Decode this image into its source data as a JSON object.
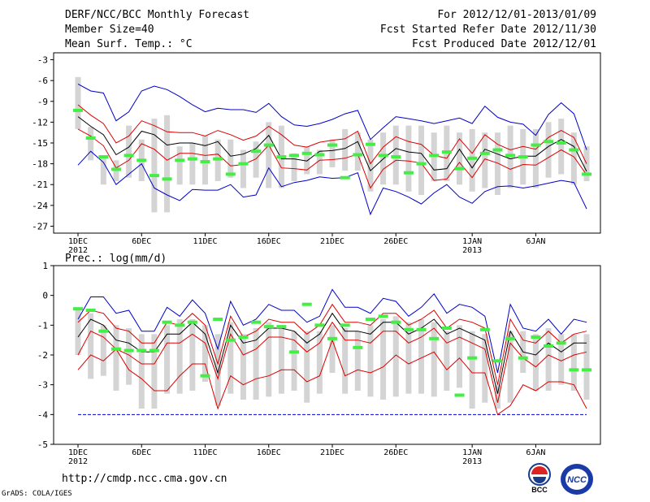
{
  "header": {
    "title": "DERF/NCC/BCC Monthly Forecast",
    "member_size": "Member Size=40",
    "variable_1": "Mean Surf. Temp.: °C",
    "for_range": "For 2012/12/01-2013/01/09",
    "fcst_started": "Fcst Started Refer Date 2012/11/30",
    "fcst_produced": "Fcst Produced Date 2012/12/01"
  },
  "footer": {
    "url": "http://cmdp.ncc.cma.gov.cn",
    "grads": "GrADS: COLA/IGES",
    "logo_bcc": "BCC",
    "logo_ncc": "NCC"
  },
  "colors": {
    "max_min": "#0000cc",
    "mean": "#000000",
    "spread": "#dd0000",
    "obs": "#44ee44",
    "box": "#d4d4d4",
    "baseline": "#0000cc"
  },
  "chart_data": [
    {
      "type": "line",
      "title": "Mean Surf. Temp.: °C",
      "days": 40,
      "x_tick_labels": [
        {
          "day": 1,
          "label": "1DEC",
          "sub": "2012"
        },
        {
          "day": 6,
          "label": "6DEC",
          "sub": ""
        },
        {
          "day": 11,
          "label": "11DEC",
          "sub": ""
        },
        {
          "day": 16,
          "label": "16DEC",
          "sub": ""
        },
        {
          "day": 21,
          "label": "21DEC",
          "sub": ""
        },
        {
          "day": 26,
          "label": "26DEC",
          "sub": ""
        },
        {
          "day": 32,
          "label": "1JAN",
          "sub": "2013"
        },
        {
          "day": 37,
          "label": "6JAN",
          "sub": ""
        }
      ],
      "ylim": [
        -28,
        -2
      ],
      "yticks": [
        -3,
        -6,
        -9,
        -12,
        -15,
        -18,
        -21,
        -24,
        -27
      ],
      "series": {
        "max": [
          -6.5,
          -7.5,
          -7.8,
          -11.8,
          -10.5,
          -7.5,
          -6.8,
          -7.3,
          -8.3,
          -9.5,
          -10.5,
          -10.0,
          -10.2,
          -10.2,
          -10.6,
          -9.3,
          -11.2,
          -12.4,
          -12.6,
          -12.2,
          -11.6,
          -10.8,
          -10.3,
          -14.5,
          -12.8,
          -11.2,
          -11.5,
          -11.8,
          -12.2,
          -11.8,
          -11.4,
          -12.2,
          -9.7,
          -11.3,
          -12.0,
          -12.3,
          -13.9,
          -10.9,
          -9.2,
          -10.8,
          -16.0
        ],
        "upper": [
          -9.5,
          -11.0,
          -12.2,
          -15.0,
          -14.0,
          -11.8,
          -12.5,
          -13.4,
          -13.5,
          -13.5,
          -14.0,
          -13.2,
          -13.8,
          -14.6,
          -14.0,
          -12.6,
          -13.8,
          -15.3,
          -15.6,
          -14.9,
          -14.6,
          -14.4,
          -13.3,
          -18.0,
          -15.6,
          -14.1,
          -14.8,
          -15.2,
          -16.8,
          -17.2,
          -14.4,
          -16.5,
          -13.8,
          -15.2,
          -16.0,
          -15.5,
          -15.9,
          -14.2,
          -13.2,
          -14.2,
          -18.0
        ],
        "mean": [
          -11.2,
          -12.6,
          -13.8,
          -16.7,
          -15.6,
          -13.3,
          -13.8,
          -15.3,
          -15.0,
          -15.0,
          -15.4,
          -14.8,
          -16.9,
          -16.6,
          -15.8,
          -13.9,
          -17.3,
          -17.3,
          -17.6,
          -16.2,
          -16.1,
          -15.8,
          -14.8,
          -19.0,
          -17.3,
          -15.8,
          -16.3,
          -16.5,
          -18.9,
          -18.7,
          -15.9,
          -18.6,
          -15.9,
          -16.6,
          -17.3,
          -16.9,
          -16.9,
          -15.5,
          -14.5,
          -15.5,
          -19.1
        ],
        "lower": [
          -13.0,
          -14.0,
          -15.4,
          -18.6,
          -17.5,
          -15.1,
          -15.9,
          -17.5,
          -16.5,
          -16.5,
          -16.8,
          -16.6,
          -18.3,
          -18.1,
          -17.3,
          -15.3,
          -18.6,
          -18.7,
          -18.9,
          -17.5,
          -17.4,
          -17.2,
          -16.6,
          -21.5,
          -18.8,
          -17.5,
          -17.6,
          -17.9,
          -20.4,
          -20.2,
          -17.8,
          -20.0,
          -17.3,
          -17.9,
          -18.8,
          -18.1,
          -18.2,
          -17.1,
          -16.0,
          -17.0,
          -19.6
        ],
        "min": [
          -18.2,
          -16.2,
          -17.8,
          -21.0,
          -19.5,
          -18.0,
          -21.5,
          -22.5,
          -23.3,
          -21.7,
          -21.8,
          -21.8,
          -21.0,
          -22.8,
          -22.5,
          -18.6,
          -21.3,
          -20.7,
          -20.4,
          -19.9,
          -20.1,
          -20.0,
          -19.3,
          -25.3,
          -21.5,
          -22.0,
          -22.8,
          -23.8,
          -22.2,
          -21.0,
          -22.8,
          -23.7,
          -22.0,
          -21.3,
          -21.2,
          -21.5,
          -21.2,
          -20.8,
          -20.4,
          -20.7,
          -24.5
        ],
        "box_high": [
          -5.5,
          -12.7,
          -16.8,
          -17.5,
          -12.5,
          -14.5,
          -11.5,
          -11.0,
          -15.5,
          -15.0,
          -14.0,
          -14.5,
          -14.5,
          -16.0,
          -14.8,
          -12.0,
          -12.5,
          -16.5,
          -15.5,
          -16.0,
          -14.5,
          -13.0,
          -13.5,
          -14.5,
          -13.5,
          -12.5,
          -12.5,
          -12.5,
          -13.5,
          -12.5,
          -13.5,
          -13.0,
          -13.5,
          -13.5,
          -12.5,
          -13.0,
          -13.0,
          -12.0,
          -11.5,
          -13.5,
          -15.5
        ],
        "box_low": [
          -13.0,
          -17.5,
          -21.0,
          -20.5,
          -20.0,
          -20.5,
          -25.0,
          -25.0,
          -21.0,
          -21.0,
          -21.0,
          -20.5,
          -20.0,
          -21.5,
          -20.0,
          -21.5,
          -21.5,
          -20.5,
          -19.5,
          -19.5,
          -18.5,
          -19.0,
          -19.0,
          -22.0,
          -21.0,
          -21.0,
          -22.0,
          -22.5,
          -20.5,
          -20.5,
          -21.0,
          -22.0,
          -21.5,
          -22.5,
          -21.5,
          -21.0,
          -21.5,
          -20.0,
          -19.5,
          -21.0,
          -20.5
        ],
        "obs": [
          -10.3,
          -14.3,
          -17.0,
          -18.8,
          -16.8,
          -17.5,
          -19.7,
          -20.2,
          -17.5,
          -17.3,
          -17.7,
          -17.3,
          -19.5,
          -18.0,
          -16.2,
          -15.3,
          -17.0,
          -16.8,
          -16.5,
          -16.7,
          -15.3,
          -20.0,
          -16.7,
          -15.2,
          -16.8,
          -17.0,
          -19.3,
          -18.0,
          -16.8,
          -16.3,
          -18.7,
          -17.2,
          -16.5,
          -16.0,
          -16.8,
          -17.0,
          -15.3,
          -14.8,
          -15.0,
          -16.0,
          -19.5
        ]
      }
    },
    {
      "type": "line",
      "title": "Prec.: log(mm/d)",
      "days": 40,
      "x_tick_labels": [
        {
          "day": 1,
          "label": "1DEC",
          "sub": "2012"
        },
        {
          "day": 6,
          "label": "6DEC",
          "sub": ""
        },
        {
          "day": 11,
          "label": "11DEC",
          "sub": ""
        },
        {
          "day": 16,
          "label": "16DEC",
          "sub": ""
        },
        {
          "day": 21,
          "label": "21DEC",
          "sub": ""
        },
        {
          "day": 26,
          "label": "26DEC",
          "sub": ""
        },
        {
          "day": 32,
          "label": "1JAN",
          "sub": "2013"
        },
        {
          "day": 37,
          "label": "6JAN",
          "sub": ""
        }
      ],
      "ylim": [
        -5,
        1
      ],
      "yticks": [
        1,
        0,
        -1,
        -2,
        -3,
        -4,
        -5
      ],
      "baseline": -4,
      "series": {
        "max": [
          -0.8,
          -0.05,
          -0.05,
          -0.6,
          -0.5,
          -1.2,
          -1.2,
          -0.4,
          -0.7,
          -0.15,
          -0.6,
          -1.8,
          -0.2,
          -1.0,
          -0.8,
          -0.3,
          -0.5,
          -0.5,
          -0.9,
          -0.7,
          0.2,
          -0.4,
          -0.4,
          -0.6,
          -0.1,
          -0.2,
          -0.7,
          -0.4,
          0.05,
          -0.6,
          -0.3,
          -0.4,
          -0.7,
          -2.6,
          -0.3,
          -1.1,
          -1.2,
          -0.8,
          -1.3,
          -0.8,
          -0.9
        ],
        "upper": [
          -0.9,
          -0.5,
          -0.6,
          -1.1,
          -1.2,
          -1.6,
          -1.6,
          -0.9,
          -1.0,
          -0.6,
          -1.0,
          -2.3,
          -0.7,
          -1.4,
          -1.2,
          -0.8,
          -0.9,
          -0.9,
          -1.3,
          -1.0,
          -0.3,
          -0.9,
          -0.9,
          -1.0,
          -0.6,
          -0.6,
          -1.0,
          -0.8,
          -0.5,
          -1.1,
          -0.8,
          -0.9,
          -1.1,
          -3.0,
          -0.8,
          -1.5,
          -1.6,
          -1.2,
          -1.6,
          -1.3,
          -1.2
        ],
        "mean": [
          -1.4,
          -0.8,
          -1.0,
          -1.5,
          -1.6,
          -1.9,
          -1.9,
          -1.3,
          -1.3,
          -0.9,
          -1.3,
          -2.6,
          -1.0,
          -1.6,
          -1.5,
          -1.1,
          -1.1,
          -1.2,
          -1.6,
          -1.3,
          -0.6,
          -1.2,
          -1.2,
          -1.3,
          -0.9,
          -0.9,
          -1.3,
          -1.1,
          -0.8,
          -1.3,
          -1.1,
          -1.3,
          -1.5,
          -3.3,
          -1.2,
          -1.9,
          -2.0,
          -1.6,
          -1.9,
          -1.6,
          -1.6
        ],
        "lower": [
          -2.0,
          -1.2,
          -1.4,
          -1.8,
          -2.0,
          -2.3,
          -2.3,
          -1.6,
          -1.6,
          -1.3,
          -1.6,
          -2.8,
          -1.3,
          -2.0,
          -1.8,
          -1.4,
          -1.4,
          -1.5,
          -1.9,
          -1.6,
          -0.9,
          -1.5,
          -1.5,
          -1.6,
          -1.2,
          -1.2,
          -1.6,
          -1.4,
          -1.1,
          -1.6,
          -1.4,
          -1.6,
          -1.8,
          -3.6,
          -1.6,
          -2.1,
          -2.4,
          -2.0,
          -2.2,
          -2.0,
          -1.9
        ],
        "lower2": [
          -2.5,
          -2.0,
          -2.2,
          -1.8,
          -2.5,
          -2.8,
          -3.2,
          -3.2,
          -2.7,
          -2.3,
          -2.3,
          -3.8,
          -2.7,
          -3.0,
          -2.8,
          -2.7,
          -2.5,
          -2.5,
          -2.9,
          -2.7,
          -1.5,
          -2.7,
          -2.5,
          -2.6,
          -2.4,
          -2.0,
          -2.3,
          -2.1,
          -1.9,
          -2.5,
          -2.1,
          -2.6,
          -2.6,
          -4.0,
          -3.7,
          -3.0,
          -3.2,
          -2.9,
          -2.9,
          -3.0,
          -3.8
        ],
        "min": [
          -4.0,
          -4.0,
          -4.0,
          -4.0,
          -4.0,
          -4.0,
          -4.0,
          -4.0,
          -4.0,
          -4.0,
          -4.0,
          -4.0,
          -4.0,
          -4.0,
          -4.0,
          -4.0,
          -4.0,
          -4.0,
          -4.0,
          -4.0,
          -4.0,
          -4.0,
          -4.0,
          -4.0,
          -4.0,
          -4.0,
          -4.0,
          -4.0,
          -4.0,
          -4.0,
          -4.0,
          -4.0,
          -4.0,
          -4.0,
          -4.0,
          -4.0,
          -4.0,
          -4.0,
          -4.0,
          -4.0,
          -4.0
        ],
        "box_high": [
          -0.4,
          -0.6,
          -1.0,
          -1.0,
          -1.1,
          -1.3,
          -1.3,
          -1.0,
          -0.8,
          -0.8,
          -1.0,
          -1.3,
          -0.9,
          -1.3,
          -1.1,
          -0.9,
          -1.0,
          -1.2,
          -1.2,
          -1.2,
          -1.0,
          -1.1,
          -1.2,
          -1.0,
          -0.8,
          -0.7,
          -0.9,
          -0.8,
          -0.9,
          -1.2,
          -1.0,
          -1.2,
          -1.3,
          -3.0,
          -1.2,
          -1.2,
          -1.3,
          -1.1,
          -1.3,
          -1.3,
          -1.3
        ],
        "box_high_alt": null,
        "box_low": [
          -2.0,
          -2.8,
          -2.7,
          -3.2,
          -3.0,
          -3.8,
          -3.8,
          -3.3,
          -3.3,
          -3.2,
          -2.9,
          -3.7,
          -3.3,
          -3.5,
          -3.5,
          -3.4,
          -3.3,
          -3.2,
          -3.6,
          -3.3,
          -2.6,
          -3.3,
          -3.2,
          -3.4,
          -3.5,
          -3.4,
          -3.3,
          -3.3,
          -3.4,
          -3.2,
          -3.1,
          -3.8,
          -3.6,
          -3.8,
          -3.6,
          -2.6,
          -3.2,
          -3.2,
          -3.0,
          -3.2,
          -3.5
        ],
        "obs": [
          -0.45,
          -0.5,
          -1.2,
          -1.8,
          -1.85,
          -1.85,
          -1.85,
          -0.9,
          -1.0,
          -0.9,
          -2.7,
          -0.8,
          -1.5,
          -1.4,
          -0.9,
          -1.05,
          -1.05,
          -1.9,
          -0.3,
          -1.0,
          -1.45,
          -1.0,
          -1.75,
          -0.8,
          -0.7,
          -0.9,
          -1.15,
          -1.15,
          -1.45,
          -1.1,
          -3.35,
          -2.1,
          -1.15,
          -2.2,
          -1.45,
          -2.1,
          -1.4,
          -1.7,
          -1.6,
          -2.5,
          -2.5
        ]
      }
    }
  ]
}
